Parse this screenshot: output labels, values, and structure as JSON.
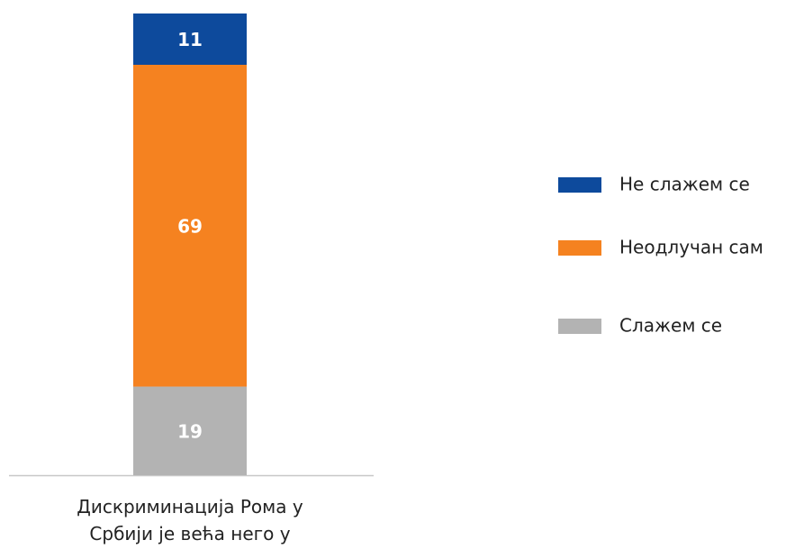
{
  "chart_data": {
    "type": "stacked_bar",
    "categories": [
      "Дискриминација Рома у Србији је већа него у другим државама."
    ],
    "series": [
      {
        "name": "Не слажем се",
        "color": "#0d4a9c",
        "values": [
          11
        ]
      },
      {
        "name": "Неодлучан сам",
        "color": "#f58220",
        "values": [
          69
        ]
      },
      {
        "name": "Слажем се",
        "color": "#b3b3b3",
        "values": [
          19
        ]
      }
    ],
    "ylim": [
      0,
      99
    ],
    "legend": "right"
  }
}
